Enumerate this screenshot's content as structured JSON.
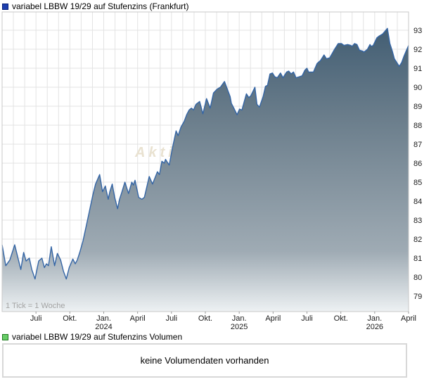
{
  "header": {
    "title": "variabel LBBW 19/29 auf Stufenzins (Frankfurt)"
  },
  "volume_section": {
    "title": "variabel LBBW 19/29 auf Stufenzins Volumen",
    "empty_message": "keine Volumendaten vorhanden"
  },
  "colors": {
    "line": "#3465a5",
    "area_top": "#3b586f",
    "area_mid1": "#6a7d8b",
    "area_mid2": "#9fabb4",
    "area_bottom": "#edf1f3",
    "grid": "#e3e3e3",
    "plot_border": "#c8c8c8",
    "axis_text": "#1a1a1a",
    "note_text": "#a3a3a3",
    "watermark": "#e9e2d1",
    "price_legend_swatch": "#1d3fae",
    "volume_legend_swatch": "#67cc67"
  },
  "chart_data": {
    "type": "area",
    "title": "variabel LBBW 19/29 auf Stufenzins (Frankfurt)",
    "tick_note": "1 Tick = 1 Woche",
    "watermark": "Aktiencheck.de",
    "x_axis": {
      "start": "Apr. 2023",
      "end": "Apr. 2026",
      "months_total": 36,
      "grid": "monthly",
      "tick_labels": [
        {
          "month": 3,
          "line1": "Juli"
        },
        {
          "month": 6,
          "line1": "Okt."
        },
        {
          "month": 9,
          "line1": "Jan.",
          "line2": "2024"
        },
        {
          "month": 12,
          "line1": "April"
        },
        {
          "month": 15,
          "line1": "Juli"
        },
        {
          "month": 18,
          "line1": "Okt."
        },
        {
          "month": 21,
          "line1": "Jan.",
          "line2": "2025"
        },
        {
          "month": 24,
          "line1": "April"
        },
        {
          "month": 27,
          "line1": "Juli"
        },
        {
          "month": 30,
          "line1": "Okt."
        },
        {
          "month": 33,
          "line1": "Jan.",
          "line2": "2026"
        },
        {
          "month": 36,
          "line1": "April"
        }
      ]
    },
    "y_axis": {
      "ticks": [
        79,
        80,
        81,
        82,
        83,
        84,
        85,
        86,
        87,
        88,
        89,
        90,
        91,
        92,
        93
      ],
      "ylim": [
        78.25,
        93.95
      ],
      "grid": true,
      "side": "right"
    },
    "series_name": "variabel LBBW 19/29 auf Stufenzins",
    "points": [
      [
        0.0,
        81.7
      ],
      [
        0.009,
        80.6
      ],
      [
        0.019,
        80.9
      ],
      [
        0.031,
        81.7
      ],
      [
        0.046,
        80.4
      ],
      [
        0.053,
        81.3
      ],
      [
        0.059,
        80.85
      ],
      [
        0.067,
        81.0
      ],
      [
        0.073,
        80.4
      ],
      [
        0.081,
        79.9
      ],
      [
        0.09,
        80.85
      ],
      [
        0.098,
        81.0
      ],
      [
        0.104,
        80.5
      ],
      [
        0.109,
        80.7
      ],
      [
        0.114,
        80.6
      ],
      [
        0.121,
        81.6
      ],
      [
        0.129,
        80.6
      ],
      [
        0.136,
        81.25
      ],
      [
        0.144,
        80.9
      ],
      [
        0.151,
        80.3
      ],
      [
        0.158,
        79.9
      ],
      [
        0.165,
        80.5
      ],
      [
        0.174,
        80.95
      ],
      [
        0.18,
        80.7
      ],
      [
        0.185,
        80.9
      ],
      [
        0.191,
        81.3
      ],
      [
        0.199,
        81.9
      ],
      [
        0.206,
        82.6
      ],
      [
        0.215,
        83.5
      ],
      [
        0.224,
        84.4
      ],
      [
        0.23,
        84.9
      ],
      [
        0.24,
        85.4
      ],
      [
        0.247,
        84.5
      ],
      [
        0.254,
        84.8
      ],
      [
        0.257,
        84.5
      ],
      [
        0.261,
        84.1
      ],
      [
        0.265,
        84.5
      ],
      [
        0.271,
        84.9
      ],
      [
        0.277,
        84.2
      ],
      [
        0.284,
        83.6
      ],
      [
        0.289,
        84.1
      ],
      [
        0.295,
        84.5
      ],
      [
        0.302,
        85.0
      ],
      [
        0.311,
        84.4
      ],
      [
        0.319,
        85.0
      ],
      [
        0.323,
        84.85
      ],
      [
        0.327,
        85.1
      ],
      [
        0.336,
        84.2
      ],
      [
        0.344,
        84.1
      ],
      [
        0.35,
        84.2
      ],
      [
        0.362,
        85.3
      ],
      [
        0.37,
        84.9
      ],
      [
        0.382,
        85.55
      ],
      [
        0.387,
        85.4
      ],
      [
        0.393,
        86.1
      ],
      [
        0.399,
        86.0
      ],
      [
        0.402,
        86.2
      ],
      [
        0.411,
        85.9
      ],
      [
        0.419,
        86.8
      ],
      [
        0.428,
        87.7
      ],
      [
        0.433,
        87.45
      ],
      [
        0.44,
        87.9
      ],
      [
        0.448,
        88.2
      ],
      [
        0.454,
        88.55
      ],
      [
        0.46,
        88.8
      ],
      [
        0.466,
        88.9
      ],
      [
        0.471,
        88.8
      ],
      [
        0.477,
        89.1
      ],
      [
        0.486,
        89.25
      ],
      [
        0.494,
        88.6
      ],
      [
        0.503,
        89.4
      ],
      [
        0.512,
        88.9
      ],
      [
        0.52,
        89.7
      ],
      [
        0.529,
        89.9
      ],
      [
        0.537,
        90.0
      ],
      [
        0.547,
        90.3
      ],
      [
        0.555,
        89.85
      ],
      [
        0.561,
        89.5
      ],
      [
        0.564,
        89.15
      ],
      [
        0.57,
        88.9
      ],
      [
        0.578,
        88.55
      ],
      [
        0.584,
        88.85
      ],
      [
        0.59,
        88.8
      ],
      [
        0.599,
        89.5
      ],
      [
        0.601,
        89.65
      ],
      [
        0.607,
        89.45
      ],
      [
        0.612,
        89.55
      ],
      [
        0.622,
        90.0
      ],
      [
        0.627,
        89.1
      ],
      [
        0.633,
        88.95
      ],
      [
        0.642,
        89.5
      ],
      [
        0.648,
        90.05
      ],
      [
        0.653,
        90.1
      ],
      [
        0.659,
        90.7
      ],
      [
        0.665,
        90.75
      ],
      [
        0.671,
        90.55
      ],
      [
        0.677,
        90.5
      ],
      [
        0.685,
        90.75
      ],
      [
        0.691,
        90.5
      ],
      [
        0.7,
        90.8
      ],
      [
        0.705,
        90.85
      ],
      [
        0.711,
        90.7
      ],
      [
        0.717,
        90.8
      ],
      [
        0.723,
        90.5
      ],
      [
        0.731,
        90.55
      ],
      [
        0.738,
        90.6
      ],
      [
        0.745,
        90.9
      ],
      [
        0.75,
        91.0
      ],
      [
        0.754,
        90.8
      ],
      [
        0.766,
        90.8
      ],
      [
        0.775,
        91.25
      ],
      [
        0.783,
        91.4
      ],
      [
        0.792,
        91.7
      ],
      [
        0.798,
        91.5
      ],
      [
        0.806,
        91.55
      ],
      [
        0.818,
        92.0
      ],
      [
        0.827,
        92.3
      ],
      [
        0.835,
        92.3
      ],
      [
        0.841,
        92.2
      ],
      [
        0.85,
        92.25
      ],
      [
        0.858,
        92.2
      ],
      [
        0.861,
        92.15
      ],
      [
        0.867,
        92.3
      ],
      [
        0.873,
        92.25
      ],
      [
        0.879,
        91.95
      ],
      [
        0.887,
        91.9
      ],
      [
        0.89,
        91.85
      ],
      [
        0.899,
        92.0
      ],
      [
        0.905,
        92.25
      ],
      [
        0.908,
        92.15
      ],
      [
        0.913,
        92.2
      ],
      [
        0.922,
        92.6
      ],
      [
        0.928,
        92.7
      ],
      [
        0.936,
        92.8
      ],
      [
        0.948,
        93.1
      ],
      [
        0.954,
        92.3
      ],
      [
        0.96,
        91.9
      ],
      [
        0.965,
        91.5
      ],
      [
        0.974,
        91.2
      ],
      [
        0.977,
        91.1
      ],
      [
        0.983,
        91.3
      ],
      [
        0.988,
        91.6
      ],
      [
        0.994,
        91.9
      ],
      [
        1.0,
        92.2
      ]
    ]
  }
}
